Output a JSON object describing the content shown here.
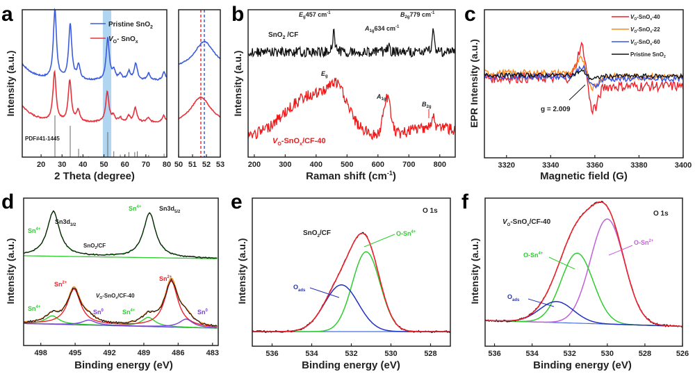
{
  "chart_data": [
    {
      "panel": "a",
      "type": "line",
      "xlabel": "2 Theta (degree)",
      "ylabel": "Intensity (a.u.)",
      "xlim": [
        11,
        80
      ],
      "xticks": [
        20,
        30,
        40,
        50,
        60,
        70,
        80
      ],
      "legend": {
        "placement": "top-right",
        "entries": [
          {
            "name": "Pristine SnO2",
            "color": "#3b5bdb"
          },
          {
            "name": "VO-SnOx",
            "color": "#e8303a"
          }
        ]
      },
      "highlight_band": [
        49.5,
        53.5
      ],
      "reference_label": "PDF#41-1445",
      "reference_peaks": [
        {
          "x": 26.6,
          "h": 1.0
        },
        {
          "x": 33.9,
          "h": 0.75
        },
        {
          "x": 37.9,
          "h": 0.2
        },
        {
          "x": 38.9,
          "h": 0.03
        },
        {
          "x": 42.6,
          "h": 0.02
        },
        {
          "x": 51.8,
          "h": 0.6
        },
        {
          "x": 54.7,
          "h": 0.14
        },
        {
          "x": 57.8,
          "h": 0.06
        },
        {
          "x": 61.9,
          "h": 0.12
        },
        {
          "x": 64.7,
          "h": 0.12
        },
        {
          "x": 65.9,
          "h": 0.14
        },
        {
          "x": 71.3,
          "h": 0.05
        },
        {
          "x": 78.7,
          "h": 0.08
        }
      ],
      "series": [
        {
          "name": "Pristine SnO2",
          "offset": 0.55,
          "peaks": [
            [
              26.6,
              0.5
            ],
            [
              33.9,
              0.4
            ],
            [
              37.9,
              0.1
            ],
            [
              51.8,
              0.3
            ],
            [
              54.7,
              0.06
            ],
            [
              57.8,
              0.04
            ],
            [
              61.9,
              0.06
            ],
            [
              65.2,
              0.12
            ],
            [
              71.3,
              0.05
            ],
            [
              78.7,
              0.06
            ]
          ]
        },
        {
          "name": "VO-SnOx",
          "offset": 0.25,
          "peaks": [
            [
              26.4,
              0.35
            ],
            [
              33.7,
              0.3
            ],
            [
              37.7,
              0.08
            ],
            [
              51.6,
              0.22
            ],
            [
              54.5,
              0.04
            ],
            [
              57.7,
              0.03
            ],
            [
              61.8,
              0.04
            ],
            [
              65.0,
              0.1
            ],
            [
              71.1,
              0.03
            ],
            [
              78.5,
              0.05
            ]
          ]
        }
      ]
    },
    {
      "panel": "a-inset",
      "type": "line",
      "xlim": [
        50,
        53
      ],
      "xticks": [
        50,
        51,
        52,
        53
      ],
      "vlines": [
        {
          "x": 51.6,
          "color": "#e8303a"
        },
        {
          "x": 51.85,
          "color": "#3b5bdb"
        }
      ],
      "series": [
        {
          "name": "Pristine SnO2",
          "peak": 51.85
        },
        {
          "name": "VO-SnOx",
          "peak": 51.6
        }
      ]
    },
    {
      "panel": "b",
      "type": "line",
      "xlabel": "Raman shift (cm-1)",
      "ylabel": "Intensity (a.u.)",
      "xlim": [
        180,
        850
      ],
      "xticks": [
        200,
        300,
        400,
        500,
        600,
        700,
        800
      ],
      "annotations": [
        "Eg 457 cm-1",
        "A1g 634 cm-1",
        "B2g 779 cm-1",
        "SnO2 /CF",
        "Eg",
        "A1g",
        "B2g",
        "VO-SnOx/CF-40"
      ],
      "series": [
        {
          "name": "SnO2/CF",
          "color": "#111111",
          "peaks": [
            [
              457,
              0.3
            ],
            [
              634,
              0.08
            ],
            [
              779,
              0.3
            ]
          ]
        },
        {
          "name": "VO-SnOx/CF-40",
          "color": "#f01818",
          "peaks": [
            [
              380,
              0.5
            ],
            [
              470,
              0.3
            ],
            [
              630,
              0.35
            ],
            [
              779,
              0.1
            ]
          ]
        }
      ]
    },
    {
      "panel": "c",
      "type": "line",
      "xlabel": "Magnetic field (G)",
      "ylabel": "EPR Intensity (a.u.)",
      "xlim": [
        3310,
        3400
      ],
      "xticks": [
        3320,
        3340,
        3360,
        3380,
        3400
      ],
      "annotation": "g = 2.009",
      "legend": {
        "placement": "top-right",
        "entries": [
          {
            "name": "VO-SnOx-40",
            "color": "#f0202a"
          },
          {
            "name": "VO-SnOx-22",
            "color": "#f7891e"
          },
          {
            "name": "VO-SnOx-60",
            "color": "#3553e8"
          },
          {
            "name": "Pristine SnO2",
            "color": "#111111"
          }
        ]
      },
      "series": [
        {
          "name": "VO-SnOx-40",
          "amp": 1.0
        },
        {
          "name": "VO-SnOx-22",
          "amp": 0.45
        },
        {
          "name": "VO-SnOx-60",
          "amp": 0.3
        },
        {
          "name": "Pristine SnO2",
          "amp": 0.12
        }
      ]
    },
    {
      "panel": "d",
      "type": "line",
      "xlabel": "Binding energy (eV)",
      "ylabel": "Intensity (a.u.)",
      "xlim": [
        499.5,
        482.5
      ],
      "xticks": [
        498,
        495,
        492,
        489,
        486,
        483
      ],
      "annotations": [
        "Sn3d3/2",
        "Sn3d5/2",
        "SnO2/CF",
        "VO-SnOx/CF-40",
        "Sn4+",
        "Sn2+",
        "Sn0"
      ],
      "top": {
        "name": "SnO2/CF",
        "peaks": [
          [
            496.9,
            1.0
          ],
          [
            488.5,
            1.0
          ]
        ]
      },
      "bottom": {
        "name": "VO-SnOx/CF-40",
        "components": [
          {
            "name": "Sn4+",
            "color": "#2ecc2e",
            "peaks": [
              [
                497.0,
                0.2
              ],
              [
                488.6,
                0.22
              ]
            ]
          },
          {
            "name": "Sn2+",
            "color": "#f0202a",
            "peaks": [
              [
                495.1,
                0.85
              ],
              [
                486.6,
                1.1
              ]
            ]
          },
          {
            "name": "Sn0",
            "color": "#7a3fd8",
            "peaks": [
              [
                493.8,
                0.12
              ],
              [
                485.3,
                0.2
              ]
            ]
          }
        ]
      }
    },
    {
      "panel": "e",
      "type": "line",
      "xlabel": "Binding energy (eV)",
      "ylabel": "Intensity (a.u.)",
      "xlim": [
        537,
        527
      ],
      "xticks": [
        536,
        534,
        532,
        530,
        528
      ],
      "annotations": [
        "O 1s",
        "SnO2/CF",
        "O-Sn4+",
        "Oads"
      ],
      "components": [
        {
          "name": "O-Sn4+",
          "color": "#2ecc2e",
          "center": 531.25,
          "height": 0.82,
          "width": 0.7
        },
        {
          "name": "Oads",
          "color": "#2030c0",
          "center": 532.5,
          "height": 0.48,
          "width": 0.85
        }
      ]
    },
    {
      "panel": "f",
      "type": "line",
      "xlabel": "Binding energy (eV)",
      "ylabel": "Intensity (a.u.)",
      "xlim": [
        536.5,
        526
      ],
      "xticks": [
        536,
        534,
        532,
        530,
        528,
        526
      ],
      "annotations": [
        "O 1s",
        "VO-SnOx/CF-40",
        "O-Sn2+",
        "O-Sn4+",
        "Oads"
      ],
      "components": [
        {
          "name": "O-Sn2+",
          "color": "#c060d8",
          "center": 530.0,
          "height": 0.9,
          "width": 0.9
        },
        {
          "name": "O-Sn4+",
          "color": "#2ecc2e",
          "center": 531.6,
          "height": 0.6,
          "width": 0.85
        },
        {
          "name": "Oads",
          "color": "#2030c0",
          "center": 532.7,
          "height": 0.18,
          "width": 0.9
        }
      ]
    }
  ],
  "labels": {
    "panel_a": "a",
    "panel_b": "b",
    "panel_c": "c",
    "panel_d": "d",
    "panel_e": "e",
    "panel_f": "f",
    "a_xlabel": "2 Theta (degree)",
    "a_ylabel": "Intensity (a.u.)",
    "a_leg1": "Pristine SnO",
    "a_leg2": "- SnO",
    "a_pdf": "PDF#41-1445",
    "b_xlabel": "Raman shift (cm",
    "b_ylabel": "Intensity (a.u.)",
    "b_eg457": "457 cm",
    "b_a1g634": "634 cm",
    "b_b2g779": "779 cm",
    "b_sno2": "SnO",
    "b_cf": " /CF",
    "b_vo": "-SnO",
    "b_vocf": "/CF-40",
    "c_xlabel": "Magnetic field (G)",
    "c_ylabel": "EPR Intensity (a.u.)",
    "c_g": "g = 2.009",
    "c_leg1": "-SnO",
    "c_leg1b": "-40",
    "c_leg2b": "-22",
    "c_leg3b": "-60",
    "c_leg4": "Pristine SnO",
    "d_xlabel": "Binding energy (eV)",
    "d_ylabel": "Intensity (a.u.)",
    "d_3d32": "Sn3d",
    "d_3d52": "Sn3d",
    "d_sno2cf": "/CF",
    "d_vocf": "/CF-40",
    "e_xlabel": "Binding energy (eV)",
    "e_ylabel": "Intensity (a.u.)",
    "e_o1s": "O 1s",
    "e_sno2cf": "/CF",
    "f_xlabel": "Binding energy (eV)",
    "f_ylabel": "Intensity (a.u.)",
    "f_o1s": "O 1s",
    "f_vocf": "/CF-40"
  }
}
